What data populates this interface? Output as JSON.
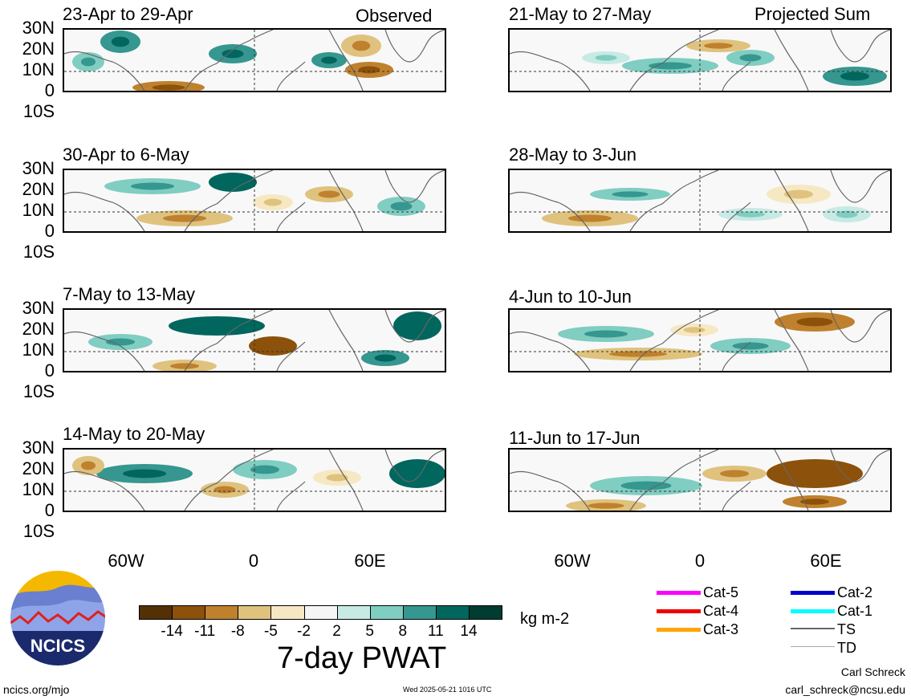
{
  "panels": [
    {
      "title": "23-Apr to 29-Apr",
      "tag": "Observed"
    },
    {
      "title": "21-May to 27-May",
      "tag": "Projected Sum"
    },
    {
      "title": "30-Apr to 6-May",
      "tag": ""
    },
    {
      "title": "28-May to 3-Jun",
      "tag": ""
    },
    {
      "title": "7-May to 13-May",
      "tag": ""
    },
    {
      "title": "4-Jun to 10-Jun",
      "tag": ""
    },
    {
      "title": "14-May to 20-May",
      "tag": ""
    },
    {
      "title": "11-Jun to 17-Jun",
      "tag": ""
    }
  ],
  "lat_labels": [
    "30N",
    "20N",
    "10N",
    "0",
    "10S"
  ],
  "lon_labels": [
    "60W",
    "0",
    "60E"
  ],
  "colorbar": {
    "colors": [
      "#543005",
      "#8c510a",
      "#bf812d",
      "#dfc27d",
      "#f6e8c3",
      "#f5f5f5",
      "#c7eae5",
      "#80cdc1",
      "#35978f",
      "#01665e",
      "#003c30"
    ],
    "ticks": [
      "-14",
      "-11",
      "-8",
      "-5",
      "-2",
      "2",
      "5",
      "8",
      "11",
      "14"
    ],
    "unit": "kg m-2",
    "title": "7-day PWAT"
  },
  "legend": [
    {
      "label": "Cat-5",
      "color": "#ff00ff"
    },
    {
      "label": "Cat-2",
      "color": "#0000cc"
    },
    {
      "label": "Cat-4",
      "color": "#ee0000"
    },
    {
      "label": "Cat-1",
      "color": "#00ffff"
    },
    {
      "label": "Cat-3",
      "color": "#ffa500"
    },
    {
      "label": "TS",
      "color": "#666666"
    },
    {
      "label": "TD",
      "color": "#aaaaaa"
    }
  ],
  "logo": {
    "text": "NCICS"
  },
  "footer": {
    "site": "ncics.org/mjo",
    "timestamp": "Wed 2025-05-21 1016 UTC",
    "author": "Carl Schreck",
    "email": "carl_schreck@ncsu.edu"
  }
}
